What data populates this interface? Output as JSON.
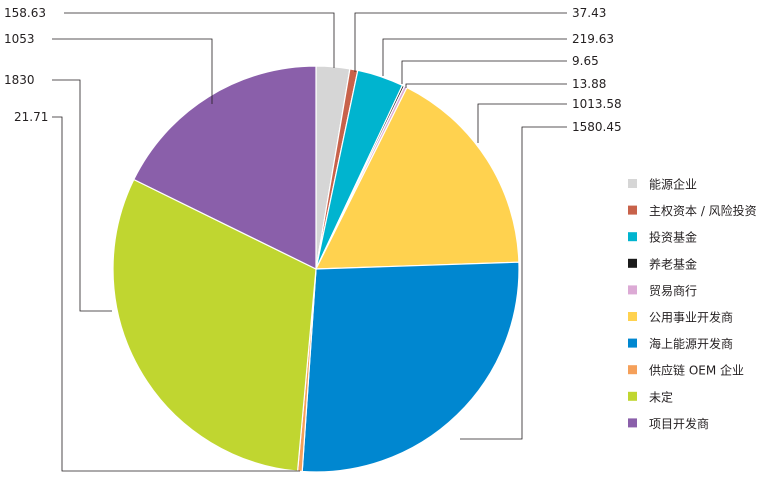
{
  "chart_data": {
    "type": "pie",
    "slices": [
      {
        "label": "能源企业",
        "value": 158.63,
        "value_label": "158.63",
        "color": "#d6d6d6"
      },
      {
        "label": "主权资本 / 风险投资",
        "value": 37.43,
        "value_label": "37.43",
        "color": "#c8624a"
      },
      {
        "label": "投资基金",
        "value": 219.63,
        "value_label": "219.63",
        "color": "#00b4cf"
      },
      {
        "label": "养老基金",
        "value": 9.65,
        "value_label": "9.65",
        "color": "#1a1a1a"
      },
      {
        "label": "贸易商行",
        "value": 13.88,
        "value_label": "13.88",
        "color": "#dcaad5"
      },
      {
        "label": "公用事业开发商",
        "value": 1013.58,
        "value_label": "1013.58",
        "color": "#ffd24f"
      },
      {
        "label": "海上能源开发商",
        "value": 1580.45,
        "value_label": "1580.45",
        "color": "#0087d0"
      },
      {
        "label": "供应链 OEM 企业",
        "value": 21.71,
        "value_label": "21.71",
        "color": "#f5a05a"
      },
      {
        "label": "未定",
        "value": 1830,
        "value_label": "1830",
        "color": "#c0d630"
      },
      {
        "label": "项目开发商",
        "value": 1053,
        "value_label": "1053",
        "color": "#8a5faa"
      }
    ],
    "legend_position": "right"
  }
}
